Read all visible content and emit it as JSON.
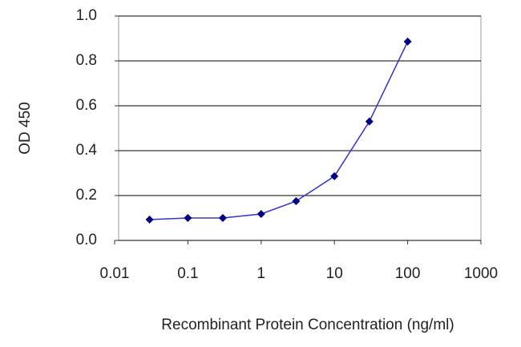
{
  "chart_data": {
    "type": "line",
    "x_label": "Recombinant Protein Concentration (ng/ml)",
    "y_label": "OD 450",
    "log_x": true,
    "grid": true,
    "x": [
      0.03,
      0.1,
      0.3,
      1,
      3,
      10,
      30,
      100
    ],
    "series": [
      {
        "color": "#000080",
        "values": [
          0.093,
          0.1,
          0.1,
          0.118,
          0.175,
          0.286,
          0.53,
          0.886
        ]
      }
    ],
    "xlim": [
      0.01,
      1000
    ],
    "xticks": [
      0.01,
      0.1,
      1,
      10,
      100,
      1000
    ],
    "ylim": [
      0,
      1
    ],
    "yticks": [
      {
        "value": 0,
        "label": "0.0"
      },
      {
        "value": 0.2,
        "label": "0.2"
      },
      {
        "value": 0.4,
        "label": "0.4"
      },
      {
        "value": 0.6,
        "label": "0.6"
      },
      {
        "value": 0.8,
        "label": "0.8"
      },
      {
        "value": 1,
        "label": "1.0"
      }
    ]
  }
}
